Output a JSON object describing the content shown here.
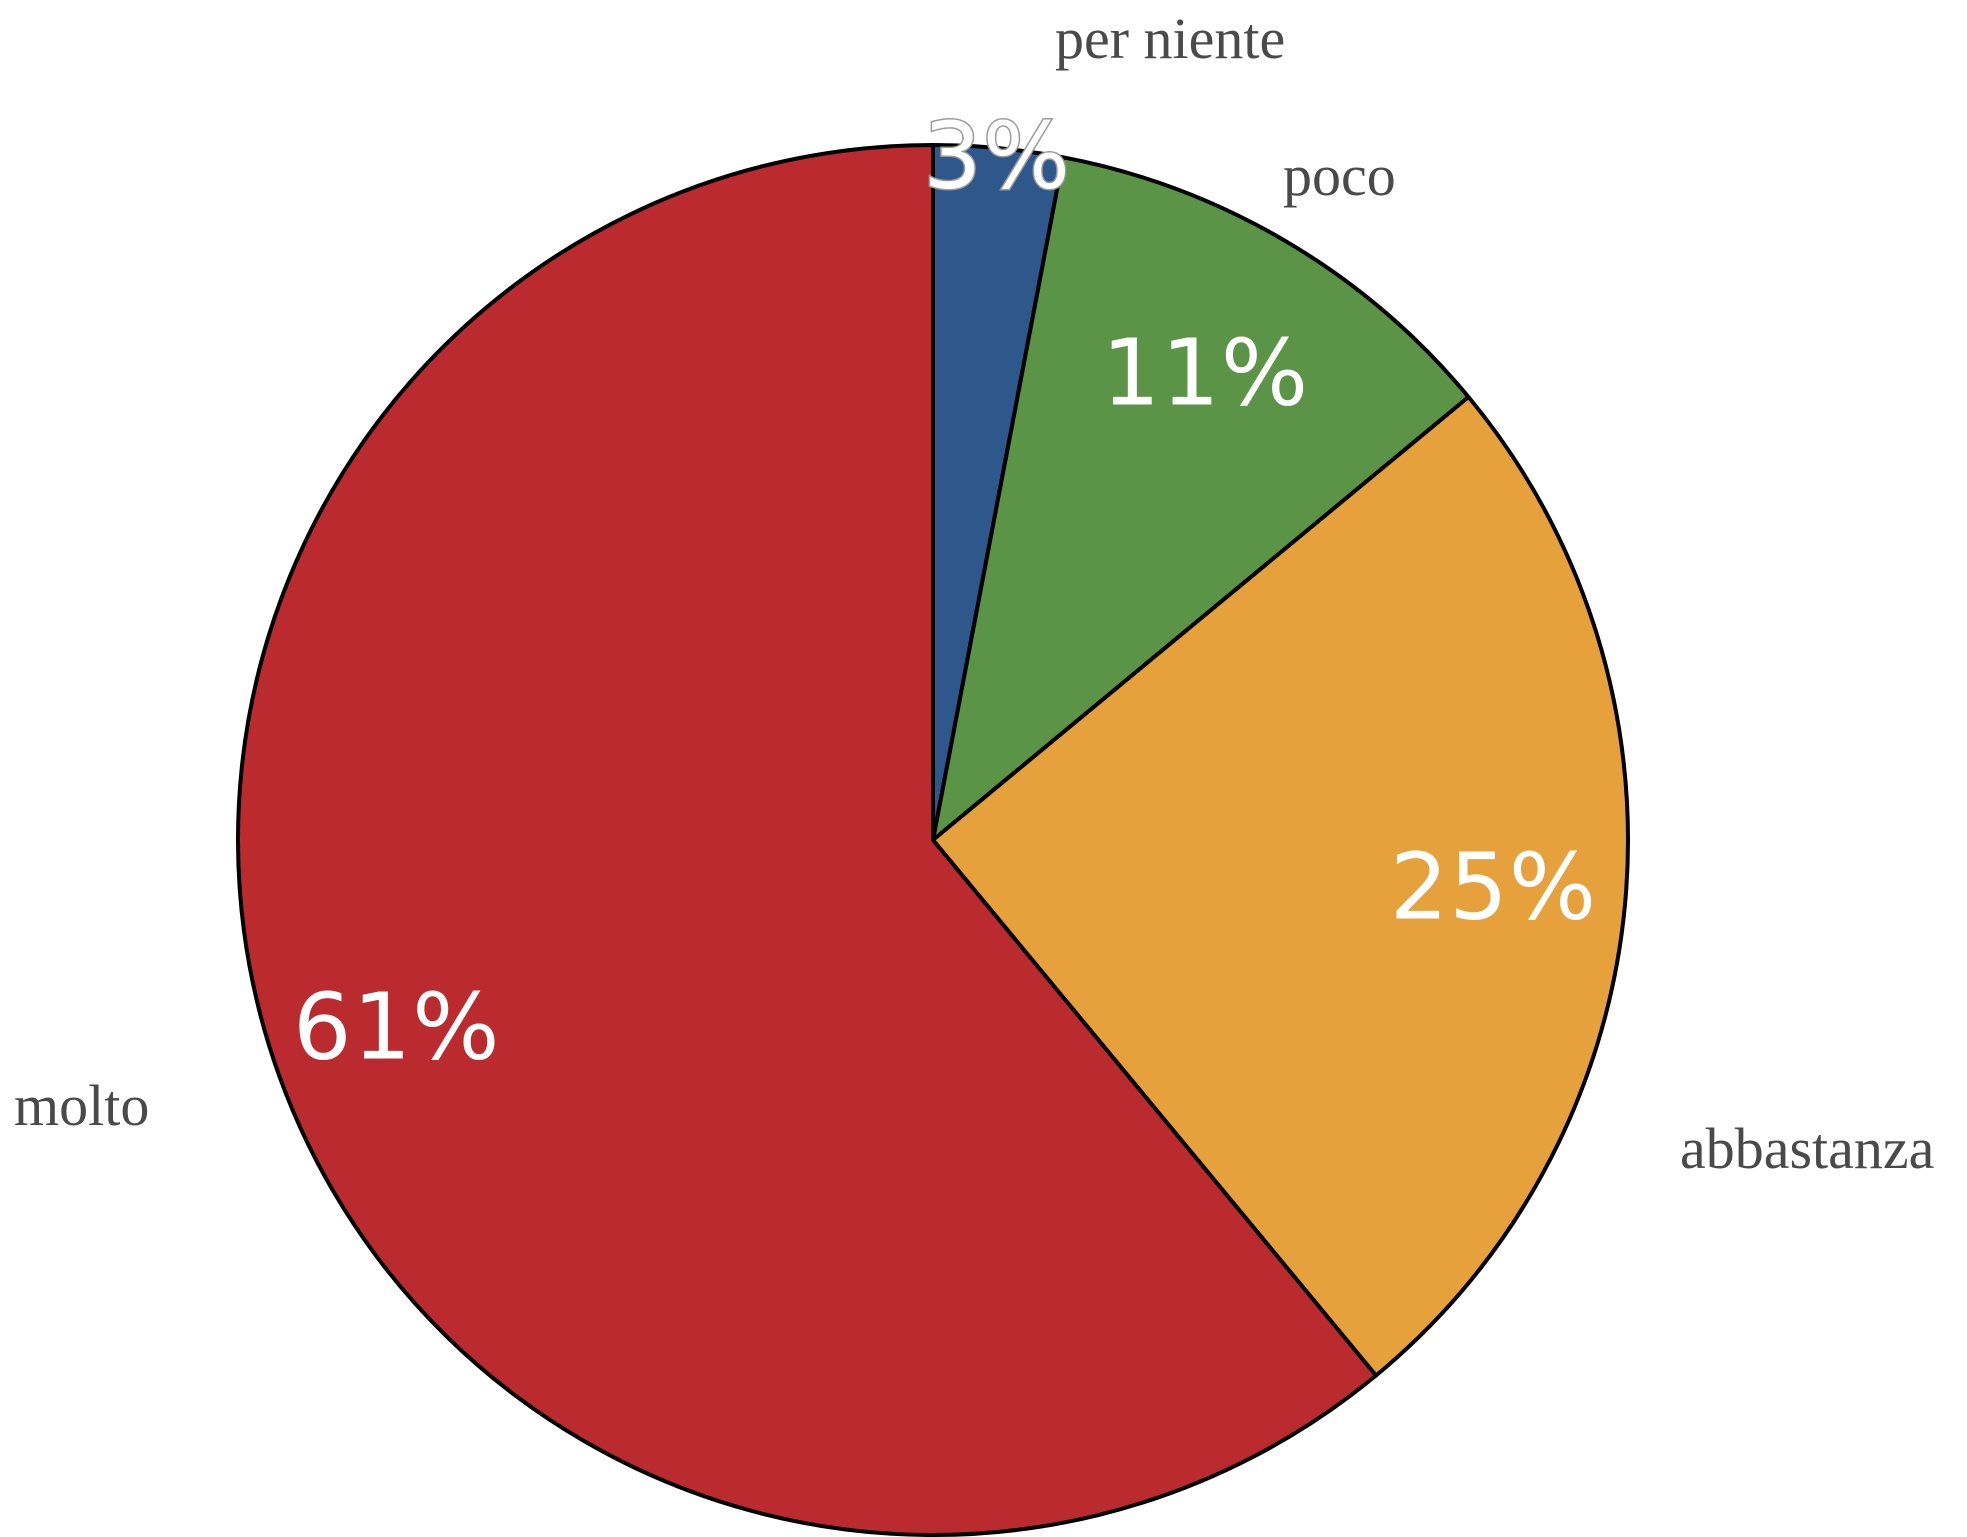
{
  "chart_data": {
    "type": "pie",
    "start_angle": "top",
    "direction": "clockwise",
    "slices": [
      {
        "label": "per niente",
        "value": 3,
        "value_label": "3%",
        "color": "#2e578c"
      },
      {
        "label": "poco",
        "value": 11,
        "value_label": "11%",
        "color": "#5b9446"
      },
      {
        "label": "abbastanza",
        "value": 25,
        "value_label": "25%",
        "color": "#e6a03c"
      },
      {
        "label": "molto",
        "value": 61,
        "value_label": "61%",
        "color": "#bb2a2f"
      }
    ]
  }
}
